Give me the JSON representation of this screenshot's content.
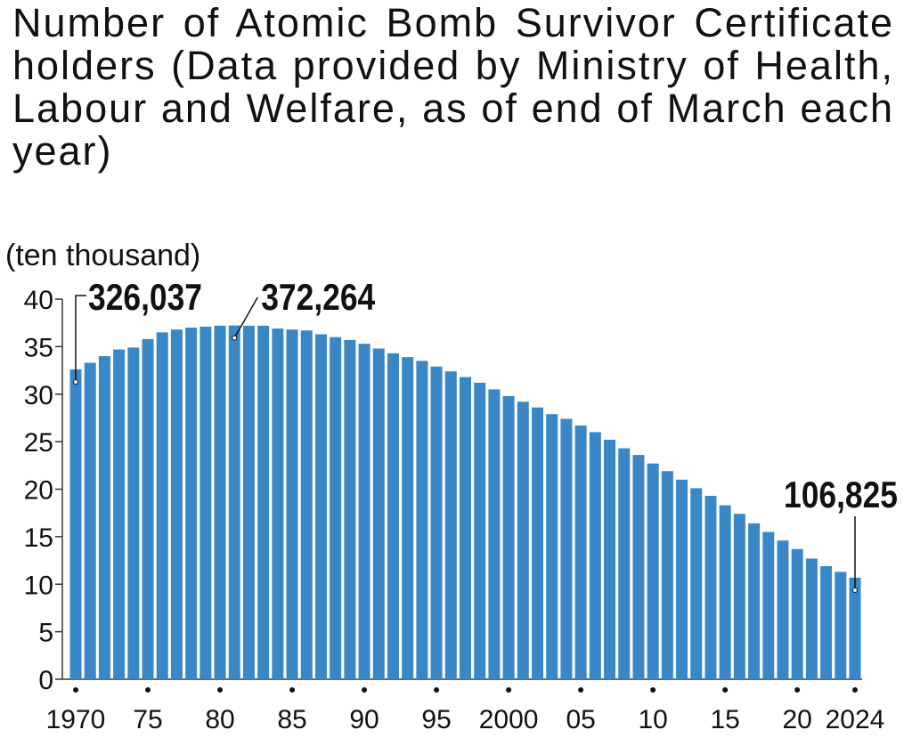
{
  "chart_data": {
    "type": "bar",
    "title": "Number of Atomic Bomb Survivor Certificate holders (Data provided by Ministry of Health, Labour and Welfare, as of end of March each year)",
    "y_label": "(ten thousand)",
    "color": "#3a87c8",
    "categories": [
      "1970",
      null,
      null,
      null,
      null,
      "75",
      null,
      null,
      null,
      null,
      "80",
      null,
      null,
      null,
      null,
      "85",
      null,
      null,
      null,
      null,
      "90",
      null,
      null,
      null,
      null,
      "95",
      null,
      null,
      null,
      null,
      "2000",
      null,
      null,
      null,
      null,
      "05",
      null,
      null,
      null,
      null,
      "10",
      null,
      null,
      null,
      null,
      "15",
      null,
      null,
      null,
      null,
      "20",
      null,
      null,
      null,
      "2024"
    ],
    "values": [
      32.6037,
      33.3,
      34.0,
      34.7,
      34.9,
      35.8,
      36.5,
      36.8,
      37.0,
      37.1,
      37.2,
      37.2264,
      37.2,
      37.2,
      36.9,
      36.8,
      36.7,
      36.3,
      36.0,
      35.7,
      35.3,
      34.8,
      34.3,
      33.9,
      33.5,
      32.9,
      32.4,
      31.8,
      31.2,
      30.5,
      29.8,
      29.2,
      28.6,
      27.9,
      27.4,
      26.7,
      26.0,
      25.2,
      24.3,
      23.6,
      22.7,
      21.9,
      21.0,
      20.1,
      19.3,
      18.3,
      17.4,
      16.4,
      15.5,
      14.6,
      13.7,
      12.7,
      11.9,
      11.3,
      10.6825
    ],
    "value_labels": [
      "326,037",
      null,
      null,
      null,
      null,
      null,
      null,
      null,
      null,
      null,
      null,
      "372,264",
      null,
      null,
      null,
      null,
      null,
      null,
      null,
      null,
      null,
      null,
      null,
      null,
      null,
      null,
      null,
      null,
      null,
      null,
      null,
      null,
      null,
      null,
      null,
      null,
      null,
      null,
      null,
      null,
      null,
      null,
      null,
      null,
      null,
      null,
      null,
      null,
      null,
      null,
      null,
      null,
      null,
      null,
      "106,825"
    ],
    "ylim": [
      0,
      40
    ],
    "yticks": [
      0,
      5,
      10,
      15,
      20,
      25,
      30,
      35,
      40
    ]
  }
}
